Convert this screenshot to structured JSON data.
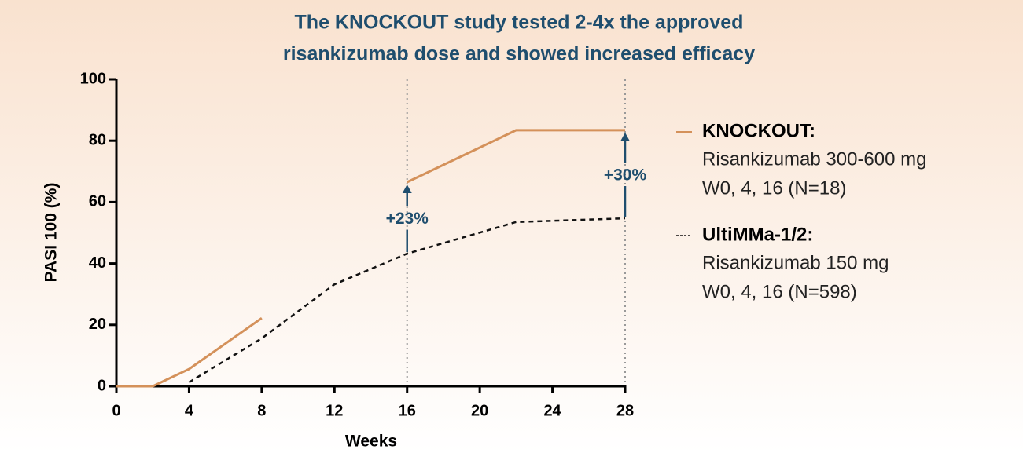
{
  "chart_data": {
    "type": "line",
    "title": [
      "The KNOCKOUT study tested 2-4x the approved",
      "risankizumab dose and showed increased efficacy"
    ],
    "x_label": "Weeks",
    "y_label": "PASI 100 (%)",
    "x": [
      0,
      2,
      4,
      8,
      12,
      16,
      22,
      28
    ],
    "series": [
      {
        "name": "KNOCKOUT:",
        "description": [
          "Risankizumab 300-600 mg",
          "W0, 4, 16 (N=18)"
        ],
        "color": "#d4915a",
        "dashed": false,
        "values": [
          0,
          0,
          5.6,
          22.2,
          null,
          66.5,
          83.4,
          83.4
        ]
      },
      {
        "name": "UltiMMa-1/2:",
        "description": [
          "Risankizumab 150 mg",
          "W0, 4, 16 (N=598)"
        ],
        "color": "#111111",
        "dashed": true,
        "values": [
          0,
          null,
          1.3,
          15.6,
          33.2,
          43.2,
          53.5,
          54.7
        ]
      }
    ],
    "xlim": [
      0,
      28
    ],
    "xticks": [
      0,
      4,
      8,
      12,
      16,
      20,
      24,
      28
    ],
    "ylim": [
      0,
      100
    ],
    "yticks": [
      0,
      20,
      40,
      60,
      80,
      100
    ],
    "vlines": [
      16,
      28
    ],
    "annotations": [
      {
        "text": "+23%",
        "x": 16
      },
      {
        "text": "+30%",
        "x": 28
      }
    ],
    "annotation_color": "#1f4e6e",
    "legend": "right"
  }
}
